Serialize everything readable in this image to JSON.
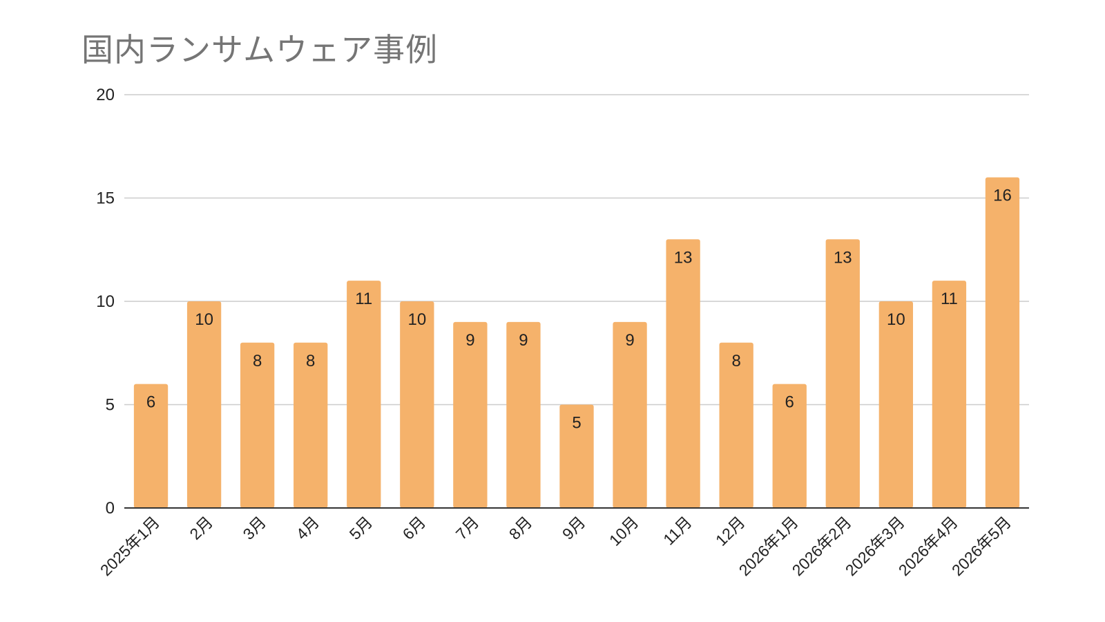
{
  "chart_data": {
    "type": "bar",
    "title": "国内ランサムウェア事例",
    "xlabel": "",
    "ylabel": "",
    "categories": [
      "2025年1月",
      "2月",
      "3月",
      "4月",
      "5月",
      "6月",
      "7月",
      "8月",
      "9月",
      "10月",
      "11月",
      "12月",
      "2026年1月",
      "2026年2月",
      "2026年3月",
      "2026年4月",
      "2026年5月"
    ],
    "values": [
      6,
      10,
      8,
      8,
      11,
      10,
      9,
      9,
      5,
      9,
      13,
      8,
      6,
      13,
      10,
      11,
      16
    ],
    "ylim": [
      0,
      20
    ],
    "yticks": [
      0,
      5,
      10,
      15,
      20
    ],
    "grid": true,
    "legend": "none",
    "data_labels": true,
    "colors": {
      "bar": "#F5B26B",
      "grid": "#CCCCCC",
      "axis": "#333333",
      "title": "#757575",
      "text": "#222222"
    }
  }
}
